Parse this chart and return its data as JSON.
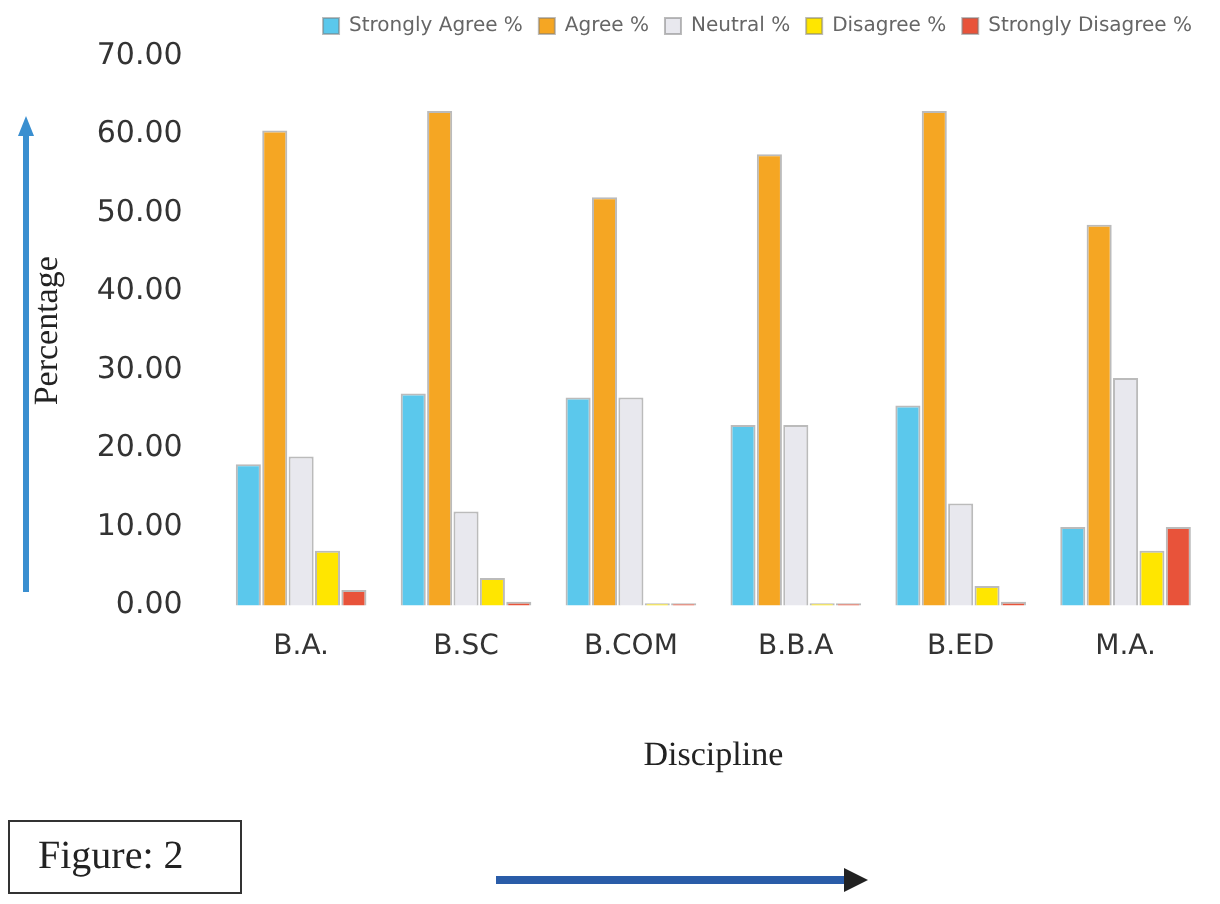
{
  "chart_data": {
    "type": "bar",
    "xlabel": "Discipline",
    "ylabel": "Percentage",
    "categories": [
      "B.A.",
      "B.SC",
      "B.COM",
      "B.B.A",
      "B.ED",
      "M.A."
    ],
    "series": [
      {
        "name": "Strongly Agree %",
        "color": "#5bc8ec",
        "values": [
          18,
          27,
          26.5,
          23,
          25.5,
          10
        ]
      },
      {
        "name": "Agree %",
        "color": "#f5a623",
        "values": [
          60.5,
          63,
          52,
          57.5,
          63,
          48.5
        ]
      },
      {
        "name": "Neutral %",
        "color": "#e8e8ee",
        "values": [
          19,
          12,
          26.5,
          23,
          13,
          29
        ]
      },
      {
        "name": "Disagree %",
        "color": "#ffe600",
        "values": [
          7,
          3.5,
          0.3,
          0.3,
          2.5,
          7
        ]
      },
      {
        "name": "Strongly Disagree %",
        "color": "#e8533a",
        "values": [
          2,
          0.5,
          0.3,
          0.3,
          0.5,
          10
        ]
      }
    ],
    "ylim": [
      0,
      70
    ],
    "yticks": [
      {
        "value": 0,
        "label": "0.00"
      },
      {
        "value": 10,
        "label": "10.00"
      },
      {
        "value": 20,
        "label": "20.00"
      },
      {
        "value": 30,
        "label": "30.00"
      },
      {
        "value": 40,
        "label": "40.00"
      },
      {
        "value": 50,
        "label": "50.00"
      },
      {
        "value": 60,
        "label": "60.00"
      },
      {
        "value": 70,
        "label": "70.00"
      }
    ],
    "grid": false,
    "legend": "top",
    "annotations": [
      "Figure: 2"
    ]
  }
}
